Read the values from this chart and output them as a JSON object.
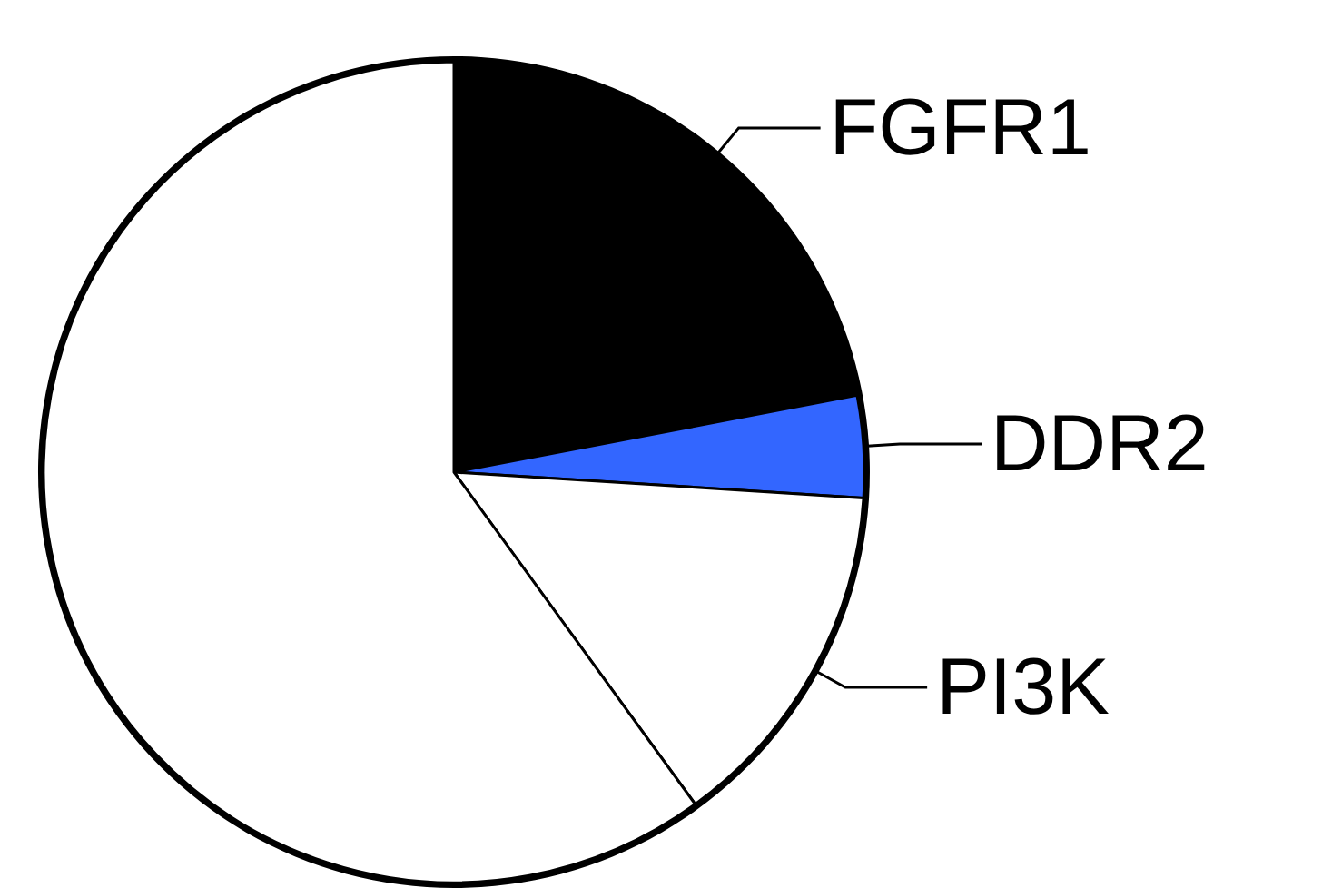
{
  "chart_data": {
    "type": "pie",
    "categories": [
      "FGFR1",
      "DDR2",
      "PI3K",
      null
    ],
    "values": [
      22,
      4,
      14,
      60
    ],
    "colors": [
      "#000000",
      "#3366ff",
      "#ffffff",
      "#ffffff"
    ]
  }
}
